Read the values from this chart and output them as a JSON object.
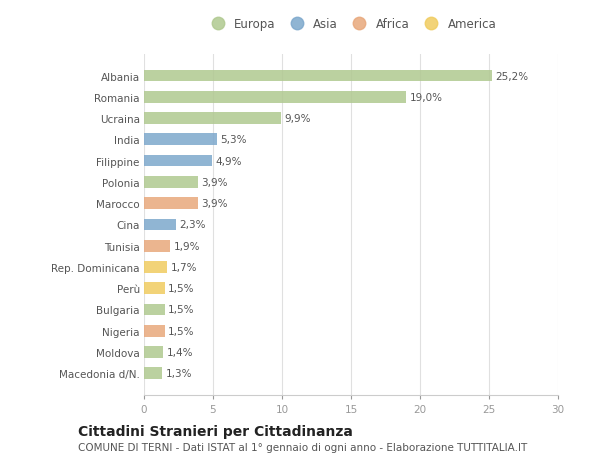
{
  "countries": [
    "Albania",
    "Romania",
    "Ucraina",
    "India",
    "Filippine",
    "Polonia",
    "Marocco",
    "Cina",
    "Tunisia",
    "Rep. Dominicana",
    "Perù",
    "Bulgaria",
    "Nigeria",
    "Moldova",
    "Macedonia d/N."
  ],
  "values": [
    25.2,
    19.0,
    9.9,
    5.3,
    4.9,
    3.9,
    3.9,
    2.3,
    1.9,
    1.7,
    1.5,
    1.5,
    1.5,
    1.4,
    1.3
  ],
  "labels": [
    "25,2%",
    "19,0%",
    "9,9%",
    "5,3%",
    "4,9%",
    "3,9%",
    "3,9%",
    "2,3%",
    "1,9%",
    "1,7%",
    "1,5%",
    "1,5%",
    "1,5%",
    "1,4%",
    "1,3%"
  ],
  "continents": [
    "Europa",
    "Europa",
    "Europa",
    "Asia",
    "Asia",
    "Europa",
    "Africa",
    "Asia",
    "Africa",
    "America",
    "America",
    "Europa",
    "Africa",
    "Europa",
    "Europa"
  ],
  "continent_colors": {
    "Europa": "#b0c990",
    "Asia": "#7da8cc",
    "Africa": "#e8a87c",
    "America": "#f0cc60"
  },
  "legend_order": [
    "Europa",
    "Asia",
    "Africa",
    "America"
  ],
  "xlim": [
    0,
    30
  ],
  "xticks": [
    0,
    5,
    10,
    15,
    20,
    25,
    30
  ],
  "title": "Cittadini Stranieri per Cittadinanza",
  "subtitle": "COMUNE DI TERNI - Dati ISTAT al 1° gennaio di ogni anno - Elaborazione TUTTITALIA.IT",
  "background_color": "#ffffff",
  "bar_height": 0.55,
  "title_fontsize": 10,
  "subtitle_fontsize": 7.5,
  "label_fontsize": 7.5,
  "tick_fontsize": 7.5,
  "legend_fontsize": 8.5
}
